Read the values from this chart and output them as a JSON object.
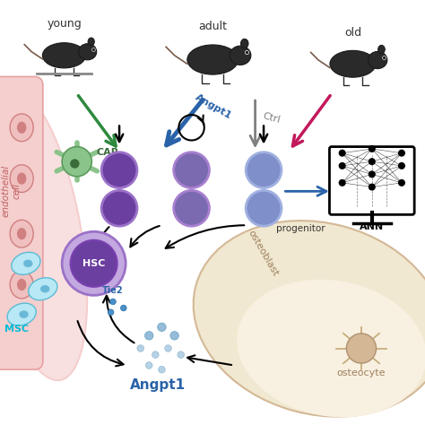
{
  "bg_color": "#ffffff",
  "title": "",
  "labels": {
    "young": "young",
    "adult": "adult",
    "old": "old",
    "angpt1_arrow": "Angpt1",
    "ctrl_arrow": "Ctrl",
    "ann": "ANN",
    "progenitor": "progenitor",
    "car": "CAR",
    "hsc": "HSC",
    "tie2": "Tie2",
    "msc": "MSC",
    "angpt1_bottom": "Angpt1",
    "osteoblast": "osteoblast",
    "osteocyte": "osteocyte",
    "endothelial": "endothelial\ncell"
  },
  "colors": {
    "dark_purple": "#6b3fa0",
    "medium_purple": "#9b59b6",
    "light_purple": "#c39bd3",
    "blue_purple": "#7f8fc9",
    "green_arrow": "#2d8a3e",
    "blue_arrow": "#2962a8",
    "gray_arrow": "#808080",
    "pink_arrow": "#c2185b",
    "dark_blue_arrow": "#2c4f9e",
    "pink_bg": "#f5cece",
    "light_pink": "#f9e0e0",
    "green_cell": "#7cb87c",
    "dark_green": "#3a6b3a",
    "cyan_cell": "#a8d8ea",
    "osteoblast_bg": "#f0e8d0",
    "osteoblast_border": "#d4b896",
    "osteocyte_color": "#c9a96e",
    "angpt1_dots": "#89b4d4",
    "angpt1_text": "#2962a8",
    "tie2_text": "#2962a8",
    "car_text": "#3a6b3a",
    "msc_text": "#00bcd4",
    "hsc_text": "#ffffff"
  }
}
